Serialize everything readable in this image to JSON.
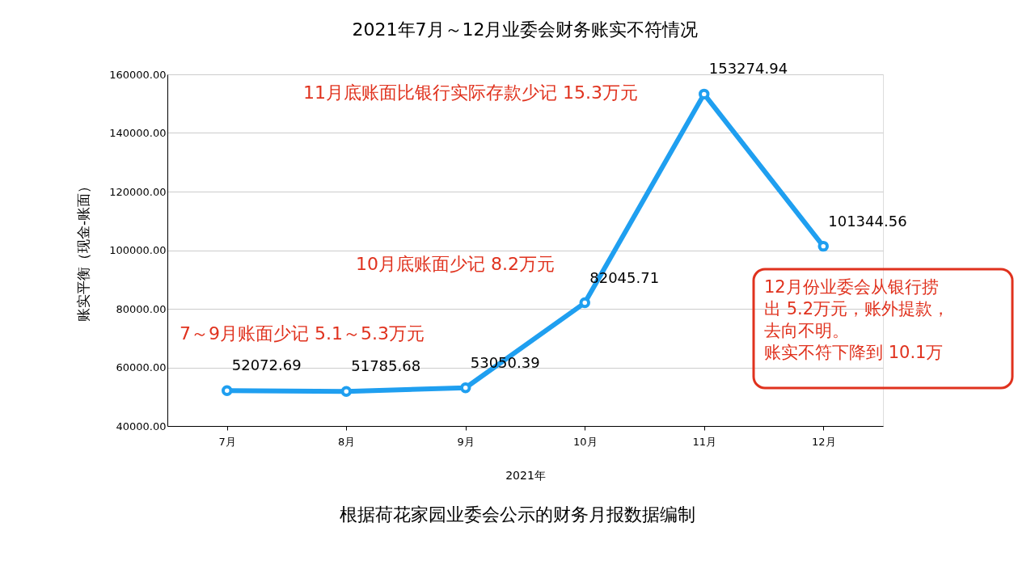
{
  "chart_data": {
    "type": "line",
    "title": "2021年7月～12月业委会财务账实不符情况",
    "xlabel": "2021年",
    "ylabel": "账实平衡（现金-账面）",
    "categories": [
      "7月",
      "8月",
      "9月",
      "10月",
      "11月",
      "12月"
    ],
    "series": [
      {
        "color": "#1f9ff0",
        "values": [
          52072.69,
          51785.68,
          53050.39,
          82045.71,
          153274.94,
          101344.56
        ]
      }
    ],
    "ylim": [
      40000,
      160000
    ],
    "yticks": [
      {
        "value": 40000,
        "label": "40000.00"
      },
      {
        "value": 60000,
        "label": "60000.00"
      },
      {
        "value": 80000,
        "label": "80000.00"
      },
      {
        "value": 100000,
        "label": "100000.00"
      },
      {
        "value": 120000,
        "label": "120000.00"
      },
      {
        "value": 140000,
        "label": "140000.00"
      },
      {
        "value": 160000,
        "label": "160000.00"
      }
    ],
    "grid": "y",
    "marker": "circle",
    "line_style": "solid",
    "data_labels": true,
    "annotations": [
      "7～9月账面少记 5.1～5.3万元",
      "10月底账面少记 8.2万元",
      "11月底账面比银行实际存款少记 15.3万元",
      "12月份业委会从银行捞出 5.2万元，账外提款，去向不明。账实不符下降到 10.1万",
      "根据荷花家园业委会公示的财务月报数据编制"
    ]
  }
}
